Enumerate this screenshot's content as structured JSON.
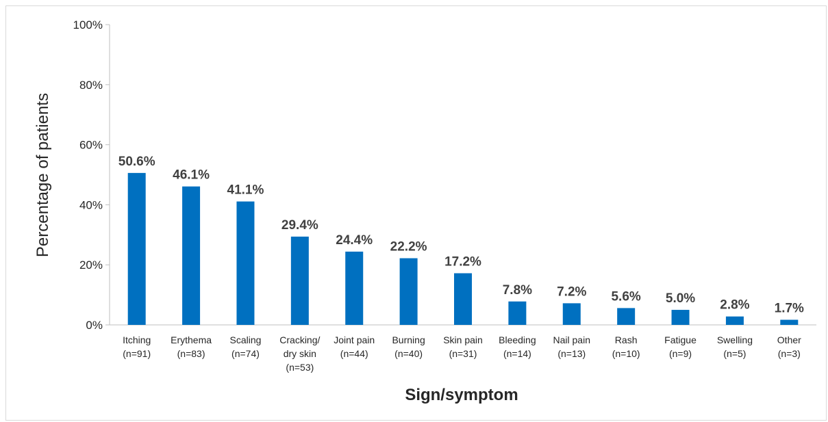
{
  "chart_data": {
    "type": "bar",
    "categories": [
      [
        "Itching",
        "(n=91)"
      ],
      [
        "Erythema",
        "(n=83)"
      ],
      [
        "Scaling",
        "(n=74)"
      ],
      [
        "Cracking/",
        "dry skin",
        "(n=53)"
      ],
      [
        "Joint pain",
        "(n=44)"
      ],
      [
        "Burning",
        "(n=40)"
      ],
      [
        "Skin pain",
        "(n=31)"
      ],
      [
        "Bleeding",
        "(n=14)"
      ],
      [
        "Nail pain",
        "(n=13)"
      ],
      [
        "Rash",
        "(n=10)"
      ],
      [
        "Fatigue",
        "(n=9)"
      ],
      [
        "Swelling",
        "(n=5)"
      ],
      [
        "Other",
        "(n=3)"
      ]
    ],
    "values": [
      50.6,
      46.1,
      41.1,
      29.4,
      24.4,
      22.2,
      17.2,
      7.8,
      7.2,
      5.6,
      5.0,
      2.8,
      1.7
    ],
    "data_labels": [
      "50.6%",
      "46.1%",
      "41.1%",
      "29.4%",
      "24.4%",
      "22.2%",
      "17.2%",
      "7.8%",
      "7.2%",
      "5.6%",
      "5.0%",
      "2.8%",
      "1.7%"
    ],
    "yticks": [
      0,
      20,
      40,
      60,
      80,
      100
    ],
    "ytick_labels": [
      "0%",
      "20%",
      "40%",
      "60%",
      "80%",
      "100%"
    ],
    "ylim": [
      0,
      100
    ],
    "xlabel": "Sign/symptom",
    "ylabel": "Percentage of patients",
    "grid": false,
    "legend": "none",
    "bar_color": "#0070C0"
  }
}
